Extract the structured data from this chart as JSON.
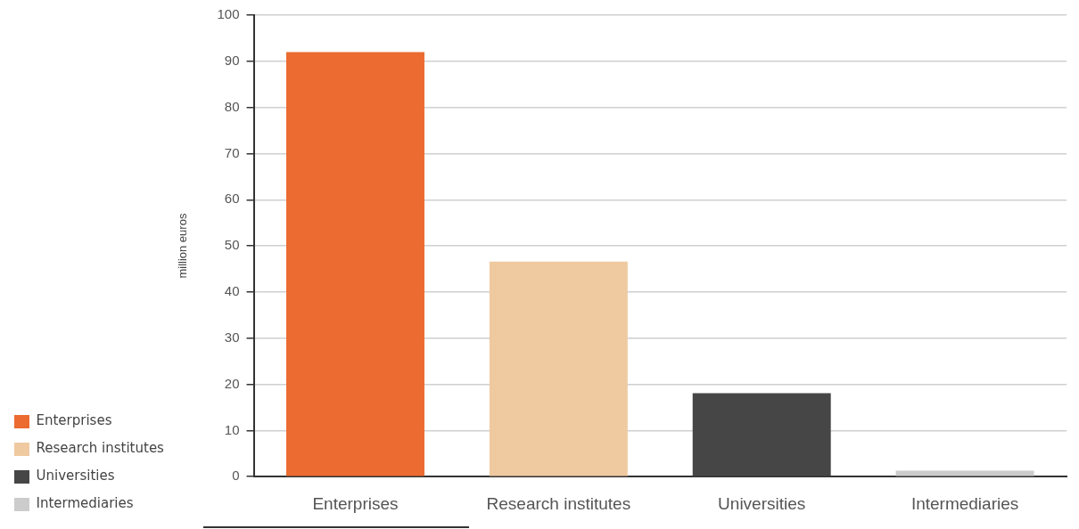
{
  "chart_data": {
    "type": "bar",
    "ylabel": "million euros",
    "categories": [
      "Enterprises",
      "Research institutes",
      "Universities",
      "Intermediaries"
    ],
    "series": [
      {
        "name": "Enterprises",
        "color": "#ec6b30",
        "values": [
          92,
          null,
          null,
          null
        ]
      },
      {
        "name": "Research institutes",
        "color": "#efc9a0",
        "values": [
          null,
          46.6,
          null,
          null
        ]
      },
      {
        "name": "Universities",
        "color": "#464646",
        "values": [
          null,
          null,
          18.1,
          null
        ]
      },
      {
        "name": "Intermediaries",
        "color": "#cccccc",
        "values": [
          null,
          null,
          null,
          1.3
        ]
      }
    ],
    "ylim": [
      0,
      100
    ],
    "yticks": [
      0,
      10,
      20,
      30,
      40,
      50,
      60,
      70,
      80,
      90,
      100
    ],
    "grid": "y",
    "legend": "bottom left"
  }
}
